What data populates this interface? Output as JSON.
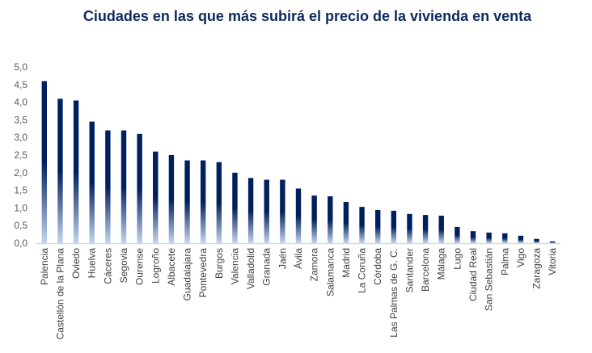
{
  "chart_data": {
    "type": "bar",
    "title": "Ciudades en las que más subirá el precio de la vivienda en venta",
    "xlabel": "",
    "ylabel": "",
    "ylim": [
      0,
      5
    ],
    "yticks": [
      "0,0",
      "0,5",
      "1,0",
      "1,5",
      "2,0",
      "2,5",
      "3,0",
      "3,5",
      "4,0",
      "4,5",
      "5,0"
    ],
    "grid": false,
    "bar_color_top": "#001f5f",
    "bar_color_bottom": "#c5d5ef",
    "categories": [
      "Palencia",
      "Castellón de la Plana",
      "Oviedo",
      "Huelva",
      "Cáceres",
      "Segovia",
      "Ourense",
      "Logroño",
      "Albacete",
      "Guadalajara",
      "Pontevedra",
      "Burgos",
      "Valencia",
      "Valladolid",
      "Granada",
      "Jaén",
      "Ávila",
      "Zamora",
      "Salamanca",
      "Madrid",
      "La Coruña",
      "Córdoba",
      "Las Palmas de G. C.",
      "Santander",
      "Barcelona",
      "Málaga",
      "Lugo",
      "Ciudad Real",
      "San Sebastián",
      "Palma",
      "Vigo",
      "Zaragoza",
      "Vitoria"
    ],
    "values": [
      4.6,
      4.1,
      4.05,
      3.45,
      3.2,
      3.2,
      3.1,
      2.6,
      2.5,
      2.35,
      2.35,
      2.3,
      2.0,
      1.85,
      1.8,
      1.8,
      1.55,
      1.35,
      1.33,
      1.17,
      1.03,
      0.94,
      0.92,
      0.83,
      0.8,
      0.78,
      0.46,
      0.34,
      0.3,
      0.28,
      0.21,
      0.12,
      0.05
    ]
  }
}
